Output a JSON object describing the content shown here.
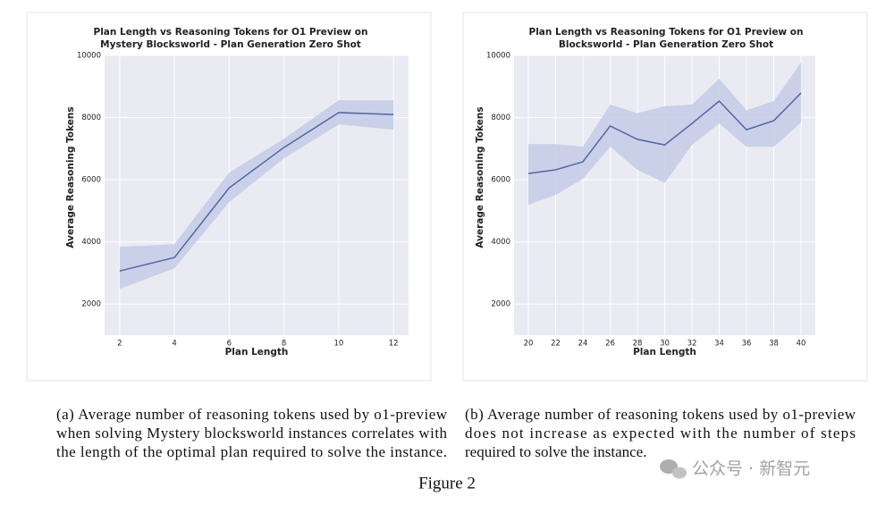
{
  "chart_data": [
    {
      "type": "line",
      "title": [
        "Plan Length vs Reasoning Tokens for O1 Preview on",
        "Mystery Blocksworld - Plan Generation Zero Shot"
      ],
      "xlabel": "Plan Length",
      "ylabel": "Average Reasoning Tokens",
      "x": [
        2,
        4,
        6,
        8,
        10,
        12
      ],
      "values": [
        3065,
        3500,
        5740,
        7040,
        8160,
        8100
      ],
      "band": {
        "upper": [
          3840,
          3930,
          6230,
          7320,
          8560,
          8560
        ],
        "lower": [
          2490,
          3150,
          5280,
          6690,
          7780,
          7610
        ]
      },
      "color": "#5566a3",
      "band_color": "#c3cbe6",
      "xlim": [
        1.45,
        12.55
      ],
      "xticks": [
        2,
        4,
        6,
        8,
        10,
        12
      ],
      "ylim": [
        1000,
        10000
      ],
      "yticks": [
        2000,
        4000,
        6000,
        8000,
        10000
      ],
      "grid": true
    },
    {
      "type": "line",
      "title": [
        "Plan Length vs Reasoning Tokens for O1 Preview on",
        "Blocksworld - Plan Generation Zero Shot"
      ],
      "xlabel": "Plan Length",
      "ylabel": "Average Reasoning Tokens",
      "x": [
        20,
        22,
        24,
        26,
        28,
        30,
        32,
        34,
        36,
        38,
        40
      ],
      "values": [
        6200,
        6320,
        6580,
        7730,
        7300,
        7120,
        7810,
        8530,
        7610,
        7900,
        8790
      ],
      "band": {
        "upper": [
          7150,
          7150,
          7060,
          8420,
          8140,
          8370,
          8420,
          9250,
          8230,
          8530,
          9770
        ],
        "lower": [
          5190,
          5510,
          6030,
          7060,
          6320,
          5890,
          7120,
          7810,
          7060,
          7060,
          7840
        ]
      },
      "color": "#5566a3",
      "band_color": "#c3cbe6",
      "xlim": [
        18.95,
        41.05
      ],
      "xticks": [
        20,
        22,
        24,
        26,
        28,
        30,
        32,
        34,
        36,
        38,
        40
      ],
      "ylim": [
        1000,
        10000
      ],
      "yticks": [
        2000,
        4000,
        6000,
        8000,
        10000
      ],
      "grid": true
    }
  ],
  "captions": [
    [
      "(a) Average number of reasoning tokens used by o1-preview",
      "when solving Mystery blocksworld instances correlates with",
      "the length of the optimal plan required to solve the instance."
    ],
    [
      "(b) Average number of reasoning tokens used by o1-preview",
      "does not increase as expected with the number of steps",
      "required to solve the instance."
    ]
  ],
  "figure_label": "Figure 2",
  "watermark": "公众号 · 新智元"
}
